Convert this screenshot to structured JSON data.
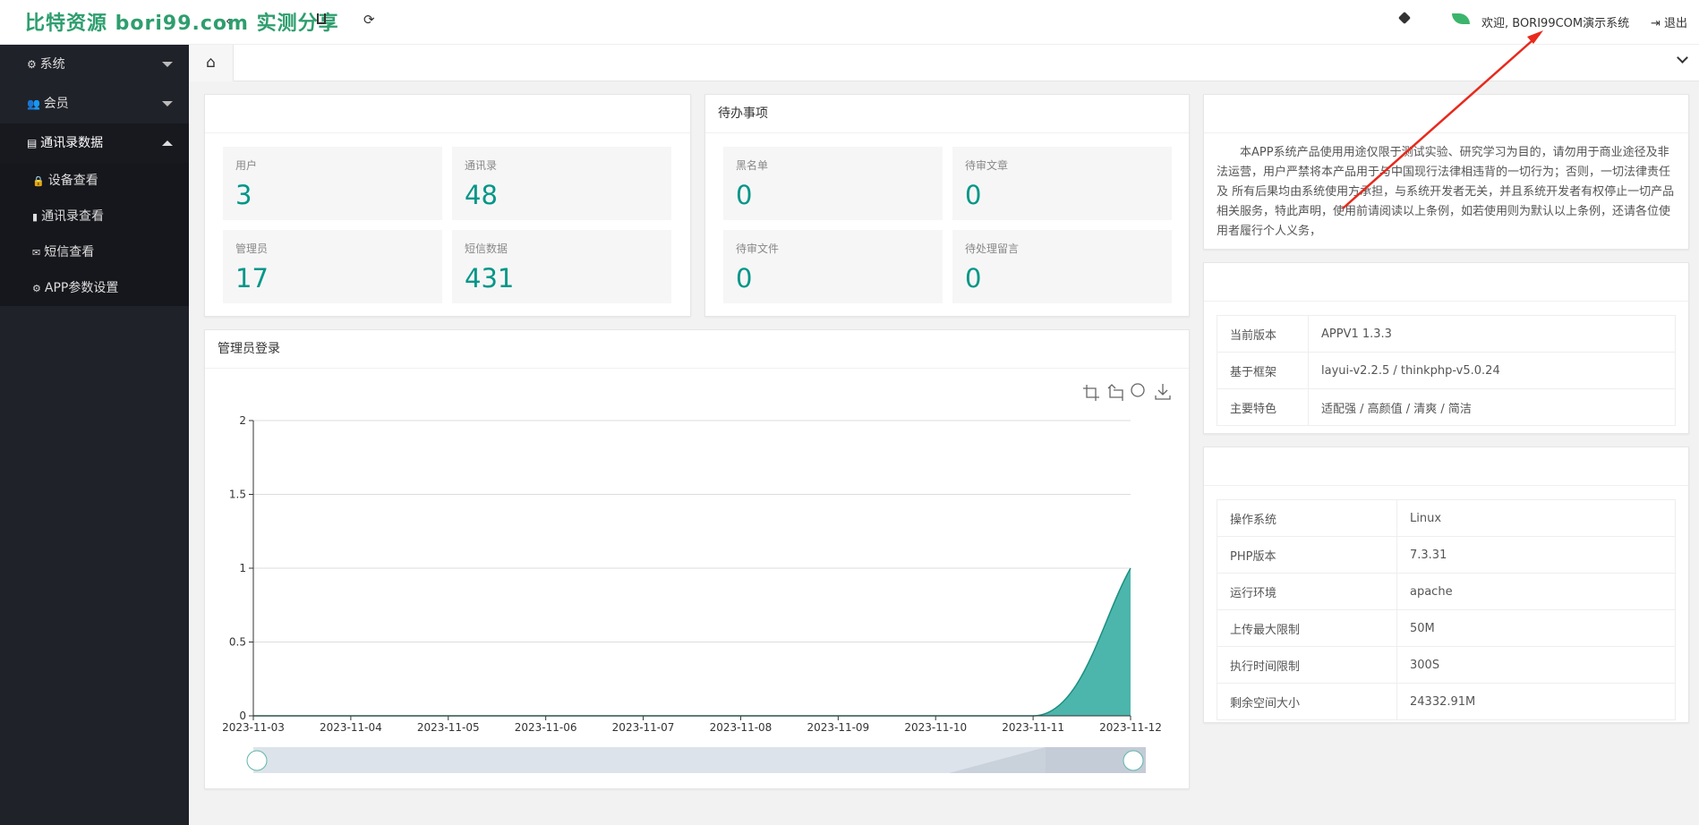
{
  "header": {
    "watermark": "比特资源 bori99.com 实测分享",
    "welcome": "欢迎, BORI99COM演示系统",
    "logout": "退出"
  },
  "sidebar": {
    "menus": [
      {
        "label": "系统"
      },
      {
        "label": "会员"
      },
      {
        "label": "通讯录数据",
        "children": [
          "设备查看",
          "通讯录查看",
          "短信查看",
          "APP参数设置"
        ]
      }
    ]
  },
  "stats": {
    "items": [
      {
        "label": "用户",
        "value": 3
      },
      {
        "label": "通讯录",
        "value": 48
      },
      {
        "label": "管理员",
        "value": 17
      },
      {
        "label": "短信数据",
        "value": 431
      }
    ]
  },
  "todo": {
    "title": "待办事项",
    "items": [
      {
        "label": "黑名单",
        "value": 0
      },
      {
        "label": "待审文章",
        "value": 0
      },
      {
        "label": "待审文件",
        "value": 0
      },
      {
        "label": "待处理留言",
        "value": 0
      }
    ]
  },
  "notice": {
    "text": "本APP系统产品使用用途仅限于测试实验、研究学习为目的，请勿用于商业途径及非法运营，用户严禁将本产品用于与中国现行法律相违背的一切行为；否则，一切法律责任 及 所有后果均由系统使用方承担，与系统开发者无关，并且系统开发者有权停止一切产品相关服务，特此声明，使用前请阅读以上条例，如若使用则为默认以上条例，还请各位使用者履行个人义务，"
  },
  "version": {
    "rows": [
      [
        "当前版本",
        "APPV1 1.3.3"
      ],
      [
        "基于框架",
        "layui-v2.2.5 / thinkphp-v5.0.24"
      ],
      [
        "主要特色",
        "适配强 / 高颜值 / 清爽 / 简洁"
      ]
    ]
  },
  "system": {
    "rows": [
      [
        "操作系统",
        "Linux"
      ],
      [
        "PHP版本",
        "7.3.31"
      ],
      [
        "运行环境",
        "apache"
      ],
      [
        "上传最大限制",
        "50M"
      ],
      [
        "执行时间限制",
        "300S"
      ],
      [
        "剩余空间大小",
        "24332.91M"
      ]
    ]
  },
  "chart_data": {
    "type": "area",
    "title": "管理员登录",
    "categories": [
      "2023-11-03",
      "2023-11-04",
      "2023-11-05",
      "2023-11-06",
      "2023-11-07",
      "2023-11-08",
      "2023-11-09",
      "2023-11-10",
      "2023-11-11",
      "2023-11-12"
    ],
    "series": [
      {
        "values": [
          0,
          0,
          0,
          0,
          0,
          0,
          0,
          0,
          0,
          1
        ],
        "color": "#1a8f80",
        "fill": "#4db6ac"
      }
    ],
    "ylim": [
      0,
      2
    ],
    "yticks": [
      0,
      0.5,
      1,
      1.5,
      2
    ],
    "grid": true
  }
}
